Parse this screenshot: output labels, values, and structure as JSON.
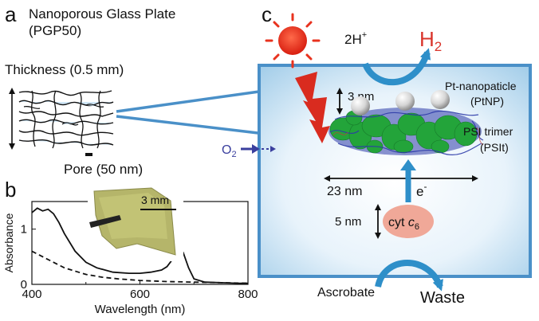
{
  "colors": {
    "chamber_border": "#4a90c8",
    "chamber_fill": "#cfe6f6",
    "arrow_blue": "#2e8fc9",
    "h2_red": "#d9342b",
    "sun": "#e8321e",
    "bolt": "#d92b1f",
    "protein_green": "#23a43a",
    "protein_blue": "#2c3aa8",
    "platinum": "#d8d8d8",
    "cyt": "#f0a898",
    "o2": "#3a3f9e",
    "pore_fill": "#cfe6f6"
  },
  "panel_a": {
    "label": "a",
    "title_line1": "Nanoporous Glass Plate",
    "title_line2": "(PGP50)",
    "thickness": "Thickness (0.5 mm)",
    "pore": "Pore (50 nm)"
  },
  "panel_b": {
    "label": "b",
    "scale_bar": "3 mm"
  },
  "panel_c": {
    "label": "c",
    "protons": "2H",
    "protons_sup": "+",
    "hydrogen": "H",
    "hydrogen_sub": "2",
    "oxygen": "O",
    "oxygen_sub": "2",
    "pt_line1": "Pt-nanopaticle",
    "pt_line2": "(PtNP)",
    "psi_line1": "PSI trimer",
    "psi_line2": "(PSIt)",
    "dim_3nm": "3 nm",
    "dim_23nm": "23 nm",
    "electron": "e",
    "electron_sup": "-",
    "dim_5nm": "5 nm",
    "cyt": "cyt ",
    "cyt_italic": "c",
    "cyt_sub": "6",
    "ascorbate": "Ascrobate",
    "waste": "Waste"
  },
  "chart_data": {
    "type": "line",
    "xlabel": "Wavelength (nm)",
    "ylabel": "Absorbance",
    "xlim": [
      400,
      800
    ],
    "ylim": [
      0,
      1.5
    ],
    "xticks": [
      "400",
      "600",
      "800"
    ],
    "yticks": [
      "0",
      "1"
    ],
    "series": [
      {
        "style": "solid",
        "x": [
          400,
          410,
          420,
          430,
          440,
          450,
          460,
          480,
          500,
          520,
          550,
          580,
          600,
          620,
          640,
          650,
          660,
          670,
          675,
          680,
          690,
          700,
          720,
          750,
          780,
          800
        ],
        "y": [
          1.3,
          1.38,
          1.33,
          1.36,
          1.28,
          1.12,
          0.92,
          0.6,
          0.4,
          0.3,
          0.22,
          0.2,
          0.2,
          0.22,
          0.26,
          0.32,
          0.45,
          0.6,
          0.64,
          0.58,
          0.3,
          0.1,
          0.04,
          0.03,
          0.02,
          0.02
        ]
      },
      {
        "style": "dashed",
        "x": [
          400,
          420,
          440,
          460,
          480,
          500,
          530,
          560,
          600,
          650,
          700,
          750,
          800
        ],
        "y": [
          0.6,
          0.5,
          0.4,
          0.3,
          0.24,
          0.18,
          0.13,
          0.1,
          0.07,
          0.05,
          0.04,
          0.03,
          0.02
        ]
      }
    ]
  }
}
